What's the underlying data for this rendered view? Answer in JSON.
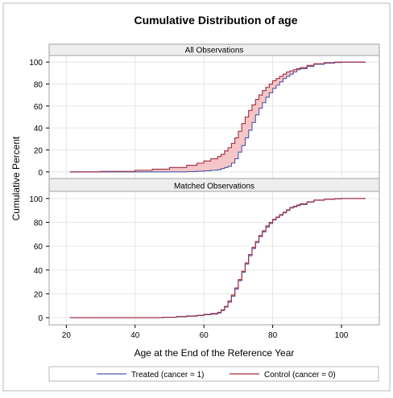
{
  "chart_data": {
    "type": "line",
    "step": true,
    "title": "Cumulative Distribution of age",
    "xlabel": "Age at the End of the Reference Year",
    "ylabel": "Cumulative Percent",
    "xlim": [
      15,
      111
    ],
    "ylim": [
      -6,
      106
    ],
    "x_ticks": [
      20,
      40,
      60,
      80,
      100
    ],
    "y_ticks": [
      0,
      20,
      40,
      60,
      80,
      100
    ],
    "grid": true,
    "legend_position": "bottom",
    "colors": {
      "treated": "#4a5aa8",
      "control": "#a52a3c",
      "band": "#f4c6c8",
      "grid": "#e6e6e6",
      "header_bg": "#eeeeee"
    },
    "panels": [
      {
        "header": "All Observations",
        "series": [
          {
            "name": "Treated (cancer = 1)",
            "x": [
              21,
              50,
              55,
              58,
              60,
              62,
              64,
              65,
              66,
              67,
              68,
              69,
              70,
              71,
              72,
              73,
              74,
              75,
              76,
              77,
              78,
              79,
              80,
              81,
              82,
              83,
              84,
              85,
              86,
              87,
              88,
              90,
              92,
              95,
              98,
              100,
              107
            ],
            "y": [
              0,
              0,
              0.3,
              0.6,
              1,
              1.5,
              2,
              3,
              4,
              5,
              8,
              12,
              18,
              24,
              31,
              38,
              45,
              52,
              58,
              63,
              68,
              72,
              76,
              79,
              82,
              85,
              87,
              89,
              91,
              93,
              94,
              96,
              98,
              99,
              99.6,
              100,
              100
            ]
          },
          {
            "name": "Control (cancer = 0)",
            "x": [
              21,
              30,
              40,
              45,
              50,
              55,
              58,
              60,
              62,
              64,
              65,
              66,
              67,
              68,
              69,
              70,
              71,
              72,
              73,
              74,
              75,
              76,
              77,
              78,
              79,
              80,
              81,
              82,
              83,
              84,
              85,
              86,
              87,
              88,
              90,
              92,
              95,
              98,
              100,
              107
            ],
            "y": [
              0,
              0.5,
              1.5,
              2.5,
              4,
              6,
              8,
              10,
              12,
              14,
              16,
              19,
              22,
              26,
              31,
              37,
              44,
              50,
              56,
              61,
              66,
              70,
              74,
              77,
              80,
              83,
              85,
              87,
              89,
              91,
              92,
              93,
              94,
              95,
              97,
              98.5,
              99.5,
              100,
              100,
              100
            ]
          }
        ]
      },
      {
        "header": "Matched Observations",
        "series": [
          {
            "name": "Treated (cancer = 1)",
            "x": [
              21,
              48,
              52,
              55,
              58,
              60,
              62,
              64,
              65,
              66,
              67,
              68,
              69,
              70,
              71,
              72,
              73,
              74,
              75,
              76,
              77,
              78,
              79,
              80,
              81,
              82,
              83,
              84,
              85,
              86,
              87,
              88,
              90,
              92,
              95,
              98,
              100,
              107
            ],
            "y": [
              0,
              0.3,
              0.8,
              1.2,
              1.8,
              2.5,
              3,
              4,
              6,
              9,
              13,
              18,
              24,
              31,
              38,
              45,
              52,
              58,
              63,
              68,
              72,
              76,
              79,
              82,
              84,
              86,
              88,
              90,
              92,
              93,
              94,
              95,
              97,
              98.5,
              99.3,
              99.8,
              100,
              100
            ]
          },
          {
            "name": "Control (cancer = 0)",
            "x": [
              21,
              48,
              52,
              55,
              58,
              60,
              62,
              64,
              65,
              66,
              67,
              68,
              69,
              70,
              71,
              72,
              73,
              74,
              75,
              76,
              77,
              78,
              79,
              80,
              81,
              82,
              83,
              84,
              85,
              86,
              87,
              88,
              90,
              92,
              95,
              98,
              100,
              107
            ],
            "y": [
              0,
              0.4,
              1,
              1.5,
              2,
              2.8,
              3.5,
              4.5,
              6.5,
              9.5,
              14,
              19,
              25,
              32,
              39,
              46,
              53,
              59,
              64,
              69,
              73,
              77,
              80,
              82.5,
              84.5,
              86.5,
              88.5,
              90.5,
              92.5,
              93.5,
              94.5,
              95.5,
              97.3,
              98.7,
              99.4,
              99.8,
              100,
              100
            ]
          }
        ]
      }
    ],
    "legend": [
      {
        "label": "Treated (cancer = 1)",
        "color_key": "treated"
      },
      {
        "label": "Control (cancer = 0)",
        "color_key": "control"
      }
    ]
  }
}
